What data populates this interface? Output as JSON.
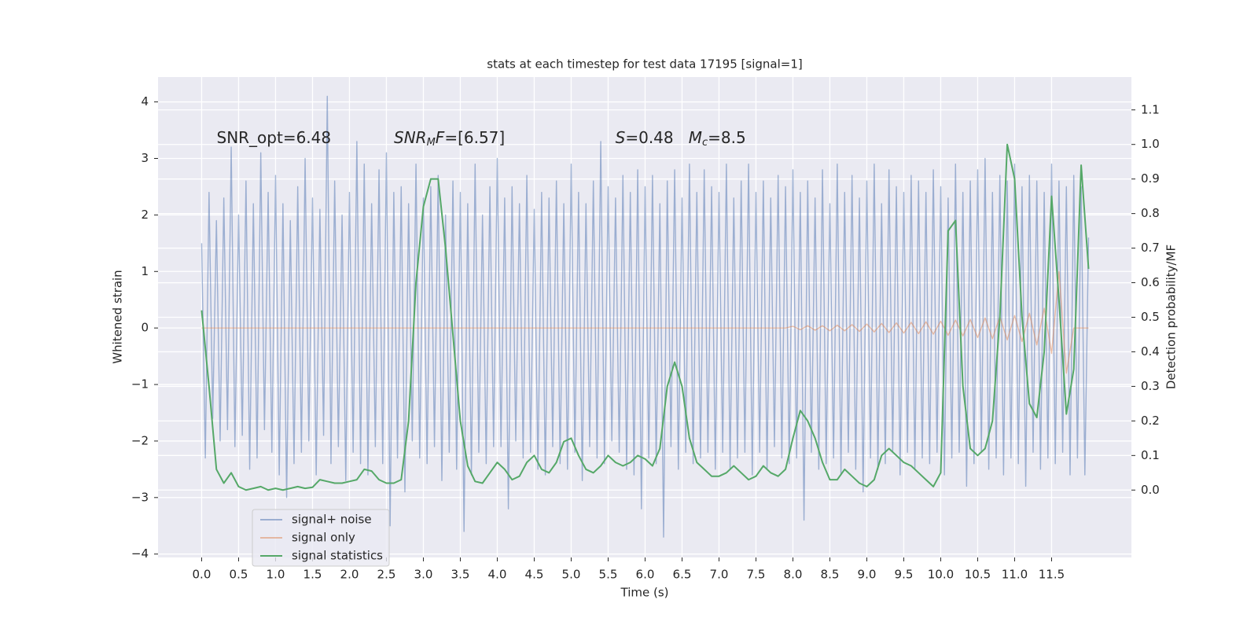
{
  "chart_data": {
    "type": "line",
    "title": "stats at each timestep for test data 17195 [signal=1]",
    "xlabel": "Time (s)",
    "ylabel": "Whitened strain",
    "y2label": "Detection probability/MF",
    "annotations": [
      [
        {
          "text": "SNR_opt=6.48",
          "style": "normal"
        }
      ],
      [
        {
          "text": "SNR",
          "style": "italic"
        },
        {
          "text": "M",
          "style": "sub"
        },
        {
          "text": "F",
          "style": "italic"
        },
        {
          "text": "=[6.57]",
          "style": "normal"
        }
      ],
      [
        {
          "text": "S",
          "style": "italic"
        },
        {
          "text": "=0.48   ",
          "style": "normal"
        },
        {
          "text": "M",
          "style": "italic"
        },
        {
          "text": "c",
          "style": "sub"
        },
        {
          "text": "=8.5",
          "style": "normal"
        }
      ]
    ],
    "xlim": [
      -0.59,
      12.58
    ],
    "ylim": [
      -4.06,
      4.44
    ],
    "y2lim": [
      -0.195,
      1.195
    ],
    "xticks": [
      {
        "value": 0,
        "label": "0.0"
      },
      {
        "value": 0.5,
        "label": "0.5"
      },
      {
        "value": 1,
        "label": "1.0"
      },
      {
        "value": 1.5,
        "label": "1.5"
      },
      {
        "value": 2,
        "label": "2.0"
      },
      {
        "value": 2.5,
        "label": "2.5"
      },
      {
        "value": 3,
        "label": "3.0"
      },
      {
        "value": 3.5,
        "label": "3.5"
      },
      {
        "value": 4,
        "label": "4.0"
      },
      {
        "value": 4.5,
        "label": "4.5"
      },
      {
        "value": 5,
        "label": "5.0"
      },
      {
        "value": 5.5,
        "label": "5.5"
      },
      {
        "value": 6,
        "label": "6.0"
      },
      {
        "value": 6.5,
        "label": "6.5"
      },
      {
        "value": 7,
        "label": "7.0"
      },
      {
        "value": 7.5,
        "label": "7.5"
      },
      {
        "value": 8,
        "label": "8.0"
      },
      {
        "value": 8.5,
        "label": "8.5"
      },
      {
        "value": 9,
        "label": "9.0"
      },
      {
        "value": 9.5,
        "label": "9.5"
      },
      {
        "value": 10,
        "label": "10.0"
      },
      {
        "value": 10.5,
        "label": "10.5"
      },
      {
        "value": 11,
        "label": "11.0"
      },
      {
        "value": 11.5,
        "label": "11.5"
      }
    ],
    "yticks": [
      {
        "value": -4,
        "label": "−4"
      },
      {
        "value": -3,
        "label": "−3"
      },
      {
        "value": -2,
        "label": "−2"
      },
      {
        "value": -1,
        "label": "−1"
      },
      0,
      1,
      2,
      3,
      4
    ],
    "y2ticks": [
      {
        "value": 0,
        "label": "0.0"
      },
      {
        "value": 0.1,
        "label": "0.1"
      },
      {
        "value": 0.2,
        "label": "0.2"
      },
      {
        "value": 0.3,
        "label": "0.3"
      },
      {
        "value": 0.4,
        "label": "0.4"
      },
      {
        "value": 0.5,
        "label": "0.5"
      },
      {
        "value": 0.6,
        "label": "0.6"
      },
      {
        "value": 0.7,
        "label": "0.7"
      },
      {
        "value": 0.8,
        "label": "0.8"
      },
      {
        "value": 0.9,
        "label": "0.9"
      },
      {
        "value": 1.0,
        "label": "1.0"
      },
      {
        "value": 1.1,
        "label": "1.1"
      }
    ],
    "grid": true,
    "legend": "lower left",
    "x": [
      0,
      0.1,
      0.2,
      0.3,
      0.4,
      0.5,
      0.6,
      0.7,
      0.8,
      0.9,
      1,
      1.1,
      1.2,
      1.3,
      1.4,
      1.5,
      1.6,
      1.7,
      1.8,
      1.9,
      2,
      2.1,
      2.2,
      2.3,
      2.4,
      2.5,
      2.6,
      2.7,
      2.8,
      2.9,
      3,
      3.1,
      3.2,
      3.3,
      3.4,
      3.5,
      3.6,
      3.7,
      3.8,
      3.9,
      4,
      4.1,
      4.2,
      4.3,
      4.4,
      4.5,
      4.6,
      4.7,
      4.8,
      4.9,
      5,
      5.1,
      5.2,
      5.3,
      5.4,
      5.5,
      5.6,
      5.7,
      5.8,
      5.9,
      6,
      6.1,
      6.2,
      6.3,
      6.4,
      6.5,
      6.6,
      6.7,
      6.8,
      6.9,
      7,
      7.1,
      7.2,
      7.3,
      7.4,
      7.5,
      7.6,
      7.7,
      7.8,
      7.9,
      8,
      8.1,
      8.2,
      8.3,
      8.4,
      8.5,
      8.6,
      8.7,
      8.8,
      8.9,
      9,
      9.1,
      9.2,
      9.3,
      9.4,
      9.5,
      9.6,
      9.7,
      9.8,
      9.9,
      10,
      10.1,
      10.2,
      10.3,
      10.4,
      10.5,
      10.6,
      10.7,
      10.8,
      10.9,
      11,
      11.1,
      11.2,
      11.3,
      11.4,
      11.5,
      11.6,
      11.7,
      11.8,
      11.9,
      12
    ],
    "series": [
      {
        "name": "signal+ noise",
        "color": "#4c72b0",
        "x": [
          0,
          0.05,
          0.1,
          0.15,
          0.2,
          0.25,
          0.3,
          0.35,
          0.4,
          0.45,
          0.5,
          0.55,
          0.6,
          0.65,
          0.7,
          0.75,
          0.8,
          0.85,
          0.9,
          0.95,
          1,
          1.05,
          1.1,
          1.15,
          1.2,
          1.25,
          1.3,
          1.35,
          1.4,
          1.45,
          1.5,
          1.55,
          1.6,
          1.65,
          1.7,
          1.75,
          1.8,
          1.85,
          1.9,
          1.95,
          2,
          2.05,
          2.1,
          2.15,
          2.2,
          2.25,
          2.3,
          2.35,
          2.4,
          2.45,
          2.5,
          2.55,
          2.6,
          2.65,
          2.7,
          2.75,
          2.8,
          2.85,
          2.9,
          2.95,
          3,
          3.05,
          3.1,
          3.15,
          3.2,
          3.25,
          3.3,
          3.35,
          3.4,
          3.45,
          3.5,
          3.55,
          3.6,
          3.65,
          3.7,
          3.75,
          3.8,
          3.85,
          3.9,
          3.95,
          4,
          4.05,
          4.1,
          4.15,
          4.2,
          4.25,
          4.3,
          4.35,
          4.4,
          4.45,
          4.5,
          4.55,
          4.6,
          4.65,
          4.7,
          4.75,
          4.8,
          4.85,
          4.9,
          4.95,
          5,
          5.05,
          5.1,
          5.15,
          5.2,
          5.25,
          5.3,
          5.35,
          5.4,
          5.45,
          5.5,
          5.55,
          5.6,
          5.65,
          5.7,
          5.75,
          5.8,
          5.85,
          5.9,
          5.95,
          6,
          6.05,
          6.1,
          6.15,
          6.2,
          6.25,
          6.3,
          6.35,
          6.4,
          6.45,
          6.5,
          6.55,
          6.6,
          6.65,
          6.7,
          6.75,
          6.8,
          6.85,
          6.9,
          6.95,
          7,
          7.05,
          7.1,
          7.15,
          7.2,
          7.25,
          7.3,
          7.35,
          7.4,
          7.45,
          7.5,
          7.55,
          7.6,
          7.65,
          7.7,
          7.75,
          7.8,
          7.85,
          7.9,
          7.95,
          8,
          8.05,
          8.1,
          8.15,
          8.2,
          8.25,
          8.3,
          8.35,
          8.4,
          8.45,
          8.5,
          8.55,
          8.6,
          8.65,
          8.7,
          8.75,
          8.8,
          8.85,
          8.9,
          8.95,
          9,
          9.05,
          9.1,
          9.15,
          9.2,
          9.25,
          9.3,
          9.35,
          9.4,
          9.45,
          9.5,
          9.55,
          9.6,
          9.65,
          9.7,
          9.75,
          9.8,
          9.85,
          9.9,
          9.95,
          10,
          10.05,
          10.1,
          10.15,
          10.2,
          10.25,
          10.3,
          10.35,
          10.4,
          10.45,
          10.5,
          10.55,
          10.6,
          10.65,
          10.7,
          10.75,
          10.8,
          10.85,
          10.9,
          10.95,
          11,
          11.05,
          11.1,
          11.15,
          11.2,
          11.25,
          11.3,
          11.35,
          11.4,
          11.45,
          11.5,
          11.55,
          11.6,
          11.65,
          11.7,
          11.75,
          11.8,
          11.85,
          11.9,
          11.95,
          12
        ],
        "values": [
          1.5,
          -2.3,
          2.4,
          -1.6,
          1.9,
          -2.0,
          2.3,
          -1.8,
          3.2,
          -2.1,
          2.0,
          -1.9,
          2.6,
          -2.5,
          2.2,
          -2.3,
          3.1,
          -1.8,
          2.4,
          -2.2,
          2.7,
          -2.6,
          2.2,
          -3.0,
          1.9,
          -2.4,
          2.5,
          -2.2,
          3.0,
          -2.0,
          2.3,
          -2.6,
          2.1,
          -1.9,
          4.1,
          -2.4,
          2.6,
          -2.1,
          2.0,
          -2.7,
          2.4,
          -2.2,
          3.3,
          -2.4,
          2.9,
          -2.6,
          2.2,
          -2.1,
          2.8,
          -2.4,
          3.1,
          -3.5,
          2.4,
          -2.3,
          2.5,
          -2.9,
          2.2,
          -2.0,
          2.9,
          -2.3,
          2.3,
          -2.4,
          2.5,
          -2.1,
          2.7,
          -2.7,
          2.0,
          -2.2,
          2.6,
          -2.5,
          2.4,
          -3.6,
          2.2,
          -2.6,
          2.9,
          -2.2,
          2.0,
          -2.4,
          2.5,
          -2.1,
          3.0,
          -2.1,
          2.3,
          -3.2,
          2.5,
          -2.0,
          2.2,
          -2.3,
          2.7,
          -2.2,
          2.1,
          -2.5,
          2.4,
          -2.6,
          2.3,
          -2.1,
          2.6,
          -2.4,
          2.2,
          -2.5,
          2.9,
          -2.2,
          2.4,
          -2.7,
          2.2,
          -2.1,
          2.6,
          -2.3,
          3.3,
          -2.4,
          2.5,
          -2.0,
          2.3,
          -2.2,
          2.7,
          -2.5,
          2.4,
          -2.6,
          2.8,
          -3.2,
          2.5,
          -2.3,
          2.7,
          -2.4,
          2.2,
          -3.7,
          2.6,
          -2.1,
          2.8,
          -2.5,
          2.3,
          -2.2,
          2.9,
          -2.4,
          2.4,
          -2.3,
          2.8,
          -2.2,
          2.5,
          -2.5,
          2.4,
          -2.2,
          2.9,
          -2.5,
          2.3,
          -2.3,
          2.6,
          -2.2,
          2.9,
          -2.6,
          2.4,
          -2.2,
          2.6,
          -2.5,
          2.3,
          -2.1,
          2.7,
          -2.3,
          2.5,
          -2.4,
          2.8,
          -2.3,
          2.4,
          -3.4,
          2.6,
          -2.2,
          2.3,
          -2.5,
          2.8,
          -2.4,
          2.2,
          -2.3,
          2.9,
          -2.6,
          2.4,
          -2.2,
          2.7,
          -2.5,
          2.3,
          -2.9,
          2.6,
          -2.3,
          2.9,
          -2.5,
          2.2,
          -2.4,
          2.8,
          -2.2,
          2.5,
          -2.6,
          2.4,
          -2.2,
          2.7,
          -2.5,
          2.6,
          -2.3,
          2.4,
          -2.4,
          2.8,
          -2.2,
          2.5,
          -2.6,
          2.3,
          -2.3,
          2.9,
          -2.2,
          2.4,
          -2.8,
          2.6,
          -2.4,
          2.8,
          -2.2,
          3.0,
          -2.5,
          2.4,
          -2.3,
          2.7,
          -2.6,
          2.6,
          -2.3,
          2.9,
          -2.4,
          2.5,
          -2.8,
          2.7,
          -2.2,
          2.6,
          -2.5,
          2.4,
          -2.3,
          2.9,
          -2.4,
          2.6,
          -2.2,
          2.5,
          -2.6,
          2.7,
          -2.3,
          2.5,
          -2.6,
          1.6
        ]
      },
      {
        "name": "signal only",
        "color": "#dd8452",
        "values": [
          0,
          0,
          0,
          0,
          0,
          0,
          0,
          0,
          0,
          0,
          0,
          0,
          0,
          0,
          0,
          0,
          0,
          0,
          0,
          0,
          0,
          0,
          0,
          0,
          0,
          0,
          0,
          0,
          0,
          0,
          0,
          0,
          0,
          0,
          0,
          0,
          0,
          0,
          0,
          0,
          0,
          0,
          0,
          0,
          0,
          0,
          0,
          0,
          0,
          0,
          0,
          0,
          0,
          0,
          0,
          0,
          0,
          0,
          0,
          0,
          0,
          0,
          0,
          0,
          0,
          0,
          0,
          0,
          0,
          0,
          0,
          0,
          0,
          0,
          0,
          0,
          0,
          0,
          0,
          0,
          0.03,
          -0.03,
          0.04,
          -0.04,
          0.04,
          -0.05,
          0.05,
          -0.05,
          0.06,
          -0.06,
          0.07,
          -0.07,
          0.08,
          -0.08,
          0.09,
          -0.09,
          0.1,
          -0.1,
          0.11,
          -0.11,
          0.12,
          -0.13,
          0.14,
          -0.14,
          0.15,
          -0.17,
          0.18,
          -0.19,
          0.2,
          -0.21,
          0.22,
          -0.24,
          0.26,
          -0.3,
          0.35,
          -0.45,
          1.0,
          -0.8,
          0,
          0,
          0
        ]
      },
      {
        "name": "signal statistics",
        "color": "#55a868",
        "axis": "y2",
        "values": [
          0.52,
          0.3,
          0.06,
          0.02,
          0.05,
          0.01,
          0.0,
          0.005,
          0.01,
          0.0,
          0.005,
          0.0,
          0.005,
          0.01,
          0.005,
          0.008,
          0.03,
          0.025,
          0.02,
          0.02,
          0.025,
          0.03,
          0.06,
          0.055,
          0.03,
          0.02,
          0.02,
          0.03,
          0.2,
          0.6,
          0.82,
          0.9,
          0.9,
          0.7,
          0.45,
          0.2,
          0.07,
          0.025,
          0.02,
          0.05,
          0.08,
          0.06,
          0.03,
          0.04,
          0.08,
          0.1,
          0.06,
          0.05,
          0.08,
          0.14,
          0.15,
          0.1,
          0.06,
          0.05,
          0.07,
          0.1,
          0.08,
          0.07,
          0.08,
          0.1,
          0.09,
          0.07,
          0.12,
          0.3,
          0.37,
          0.3,
          0.15,
          0.08,
          0.06,
          0.04,
          0.04,
          0.05,
          0.07,
          0.05,
          0.03,
          0.04,
          0.07,
          0.05,
          0.04,
          0.06,
          0.15,
          0.23,
          0.2,
          0.15,
          0.08,
          0.03,
          0.03,
          0.06,
          0.04,
          0.02,
          0.01,
          0.03,
          0.1,
          0.12,
          0.1,
          0.08,
          0.07,
          0.05,
          0.03,
          0.01,
          0.05,
          0.75,
          0.78,
          0.3,
          0.12,
          0.1,
          0.12,
          0.2,
          0.5,
          1.0,
          0.9,
          0.5,
          0.25,
          0.21,
          0.4,
          0.85,
          0.55,
          0.22,
          0.35,
          0.94,
          0.64
        ]
      }
    ]
  }
}
